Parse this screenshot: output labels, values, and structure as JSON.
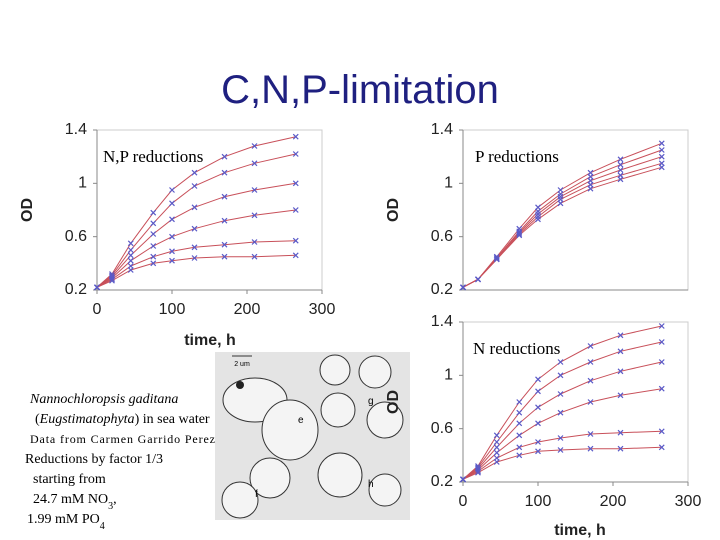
{
  "title": "C,N,P-limitation",
  "chart_data": [
    {
      "type": "line",
      "annotation": "N,P reductions",
      "x_label": "time, h",
      "y_label": "OD",
      "xlim": [
        0,
        300
      ],
      "ylim": [
        0.2,
        1.4
      ],
      "xticks": [
        0,
        100,
        200,
        300
      ],
      "yticks": [
        0.2,
        0.6,
        1,
        1.4
      ],
      "line_color": "#c8505a",
      "marker_color": "#5a5ac8",
      "x": [
        0,
        20,
        45,
        75,
        100,
        130,
        170,
        210,
        265
      ],
      "series": [
        {
          "values": [
            0.22,
            0.32,
            0.55,
            0.78,
            0.95,
            1.08,
            1.2,
            1.28,
            1.35
          ]
        },
        {
          "values": [
            0.22,
            0.31,
            0.5,
            0.7,
            0.85,
            0.98,
            1.08,
            1.15,
            1.22
          ]
        },
        {
          "values": [
            0.22,
            0.3,
            0.46,
            0.62,
            0.73,
            0.82,
            0.9,
            0.95,
            1.0
          ]
        },
        {
          "values": [
            0.22,
            0.29,
            0.42,
            0.53,
            0.6,
            0.66,
            0.72,
            0.76,
            0.8
          ]
        },
        {
          "values": [
            0.22,
            0.28,
            0.38,
            0.45,
            0.49,
            0.52,
            0.54,
            0.56,
            0.57
          ]
        },
        {
          "values": [
            0.22,
            0.27,
            0.35,
            0.4,
            0.42,
            0.44,
            0.45,
            0.45,
            0.46
          ]
        }
      ]
    },
    {
      "type": "line",
      "annotation": "P reductions",
      "y_label": "OD",
      "xlim": [
        0,
        300
      ],
      "ylim": [
        0.2,
        1.4
      ],
      "yticks": [
        0.2,
        0.6,
        1,
        1.4
      ],
      "line_color": "#c8505a",
      "marker_color": "#5a5ac8",
      "x": [
        0,
        20,
        45,
        75,
        100,
        130,
        170,
        210,
        265
      ],
      "series": [
        {
          "values": [
            0.22,
            0.28,
            0.45,
            0.66,
            0.82,
            0.95,
            1.08,
            1.18,
            1.3
          ]
        },
        {
          "values": [
            0.22,
            0.28,
            0.44,
            0.64,
            0.79,
            0.92,
            1.05,
            1.14,
            1.25
          ]
        },
        {
          "values": [
            0.22,
            0.28,
            0.44,
            0.63,
            0.77,
            0.9,
            1.02,
            1.1,
            1.2
          ]
        },
        {
          "values": [
            0.22,
            0.28,
            0.43,
            0.62,
            0.75,
            0.88,
            0.99,
            1.06,
            1.15
          ]
        },
        {
          "values": [
            0.22,
            0.28,
            0.43,
            0.61,
            0.73,
            0.85,
            0.96,
            1.03,
            1.12
          ]
        }
      ]
    },
    {
      "type": "line",
      "annotation": "N reductions",
      "x_label": "time, h",
      "y_label": "OD",
      "xlim": [
        0,
        300
      ],
      "ylim": [
        0.2,
        1.4
      ],
      "xticks": [
        0,
        100,
        200,
        300
      ],
      "yticks": [
        0.2,
        0.6,
        1,
        1.4
      ],
      "line_color": "#c8505a",
      "marker_color": "#5a5ac8",
      "x": [
        0,
        20,
        45,
        75,
        100,
        130,
        170,
        210,
        265
      ],
      "series": [
        {
          "values": [
            0.22,
            0.32,
            0.55,
            0.8,
            0.97,
            1.1,
            1.22,
            1.3,
            1.37
          ]
        },
        {
          "values": [
            0.22,
            0.31,
            0.5,
            0.72,
            0.88,
            1.0,
            1.1,
            1.18,
            1.25
          ]
        },
        {
          "values": [
            0.22,
            0.3,
            0.46,
            0.64,
            0.76,
            0.86,
            0.96,
            1.03,
            1.1
          ]
        },
        {
          "values": [
            0.22,
            0.29,
            0.42,
            0.55,
            0.64,
            0.72,
            0.8,
            0.85,
            0.9
          ]
        },
        {
          "values": [
            0.22,
            0.28,
            0.38,
            0.46,
            0.5,
            0.53,
            0.56,
            0.57,
            0.58
          ]
        },
        {
          "values": [
            0.22,
            0.27,
            0.35,
            0.4,
            0.43,
            0.44,
            0.45,
            0.45,
            0.46
          ]
        }
      ]
    }
  ],
  "notes": [
    [
      {
        "text": "Nannochloropsis gaditana",
        "style": "italic"
      }
    ],
    [
      {
        "text": "(",
        "style": "normal"
      },
      {
        "text": "Eugstimatophyta",
        "style": "italic"
      },
      {
        "text": ") in sea water",
        "style": "normal"
      }
    ],
    [
      {
        "text": "Data from Carmen Garrido Perez",
        "style": "small"
      }
    ],
    [
      {
        "text": "Reductions by factor 1/3",
        "style": "normal"
      }
    ],
    [
      {
        "text": "starting from",
        "style": "normal"
      }
    ],
    [
      {
        "text": "24.7 mM NO",
        "style": "normal"
      },
      {
        "text": "3",
        "style": "sub"
      },
      {
        "text": ",",
        "style": "normal"
      }
    ],
    [
      {
        "text": "1.99 mM PO",
        "style": "normal"
      },
      {
        "text": "4",
        "style": "sub"
      }
    ]
  ],
  "figure": {
    "scale": "2 um",
    "labels": [
      "e",
      "f",
      "g",
      "h"
    ]
  }
}
